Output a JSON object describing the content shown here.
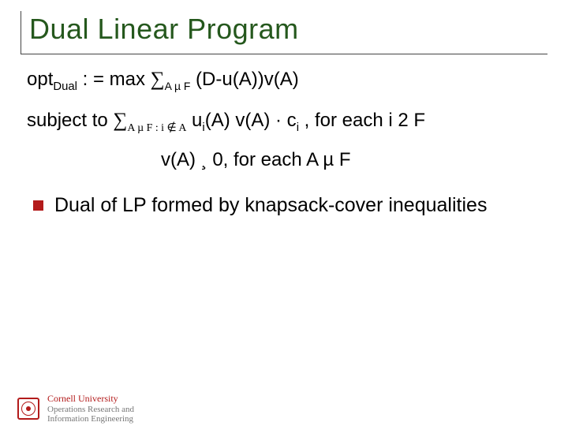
{
  "title": "Dual Linear Program",
  "eq1": {
    "lhs": "opt",
    "lhs_sub": "Dual",
    "coloneq": " : =    ",
    "max": "max ",
    "sigma": "∑",
    "sum_sub": "A µ F",
    "rest": " (D-u(A))v(A)"
  },
  "eq2": {
    "lead": "subject to  ",
    "sigma": "∑",
    "sum_sub": "A µ F : i ∉ A",
    "u": " u",
    "usub": "i",
    "mid": "(A) v(A) · c",
    "csub": "i",
    "tail": " , for each i 2 F"
  },
  "eq3": "v(A) ¸ 0, for each A µ F",
  "bullet": "Dual of LP formed by knapsack-cover inequalities",
  "footer": {
    "l1": "Cornell University",
    "l2": "Operations Research and",
    "l3": "Information Engineering"
  },
  "colors": {
    "title": "#25581d",
    "accent": "#b31b1b"
  }
}
